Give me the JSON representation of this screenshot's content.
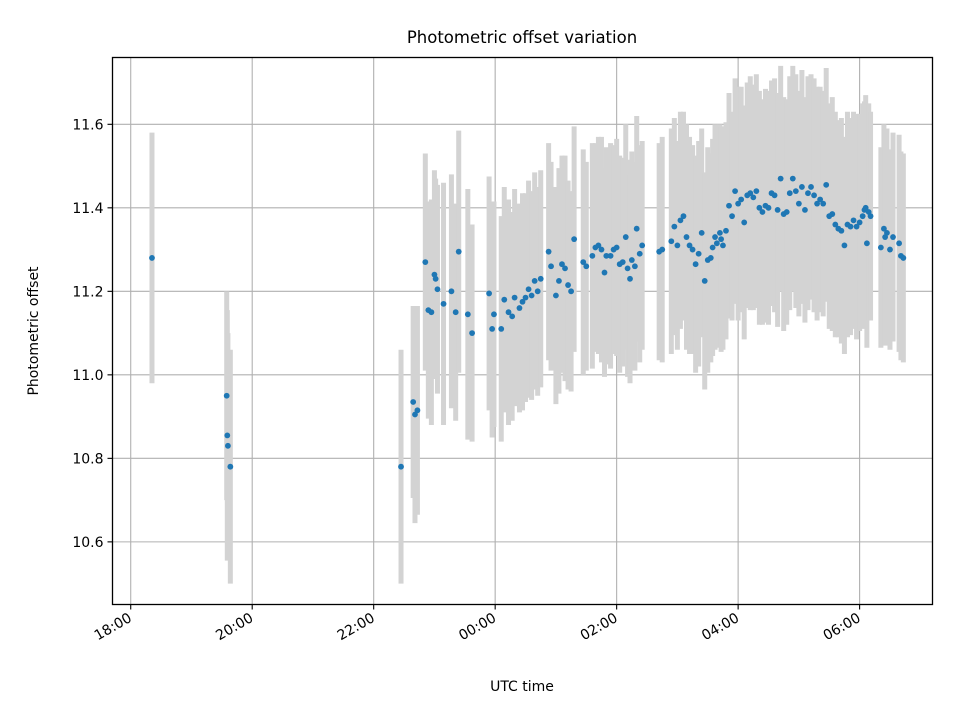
{
  "chart_data": {
    "type": "scatter",
    "title": "Photometric offset variation",
    "xlabel": "UTC time",
    "ylabel": "Photometric offset",
    "x_unit": "hours after 18:00 UTC",
    "xlim": [
      -0.3,
      13.2
    ],
    "ylim": [
      10.45,
      11.76
    ],
    "x_ticks": [
      0,
      2,
      4,
      6,
      8,
      10,
      12
    ],
    "x_tick_labels": [
      "18:00",
      "20:00",
      "22:00",
      "00:00",
      "02:00",
      "04:00",
      "06:00"
    ],
    "y_ticks": [
      10.6,
      10.8,
      11.0,
      11.2,
      11.4,
      11.6
    ],
    "y_tick_labels": [
      "10.6",
      "10.8",
      "11.0",
      "11.2",
      "11.4",
      "11.6"
    ],
    "grid": true,
    "marker_color": "#1f77b4",
    "errorbar_color": "#d3d3d3",
    "points": [
      [
        0.35,
        11.28,
        0.3
      ],
      [
        1.58,
        10.95,
        0.25
      ],
      [
        1.59,
        10.855,
        0.3
      ],
      [
        1.6,
        10.83,
        0.27
      ],
      [
        1.64,
        10.78,
        0.28
      ],
      [
        4.45,
        10.78,
        0.28
      ],
      [
        4.65,
        10.935,
        0.23
      ],
      [
        4.68,
        10.905,
        0.26
      ],
      [
        4.72,
        10.915,
        0.25
      ],
      [
        4.85,
        11.27,
        0.26
      ],
      [
        4.9,
        11.155,
        0.26
      ],
      [
        4.95,
        11.15,
        0.27
      ],
      [
        5.0,
        11.24,
        0.25
      ],
      [
        5.02,
        11.23,
        0.24
      ],
      [
        5.05,
        11.205,
        0.25
      ],
      [
        5.15,
        11.17,
        0.29
      ],
      [
        5.28,
        11.2,
        0.28
      ],
      [
        5.35,
        11.15,
        0.26
      ],
      [
        5.4,
        11.295,
        0.29
      ],
      [
        5.55,
        11.145,
        0.3
      ],
      [
        5.62,
        11.1,
        0.26
      ],
      [
        5.9,
        11.195,
        0.28
      ],
      [
        5.95,
        11.11,
        0.26
      ],
      [
        5.98,
        11.145,
        0.27
      ],
      [
        6.1,
        11.11,
        0.27
      ],
      [
        6.15,
        11.18,
        0.27
      ],
      [
        6.22,
        11.15,
        0.27
      ],
      [
        6.28,
        11.14,
        0.25
      ],
      [
        6.32,
        11.185,
        0.26
      ],
      [
        6.4,
        11.16,
        0.25
      ],
      [
        6.45,
        11.175,
        0.26
      ],
      [
        6.5,
        11.185,
        0.25
      ],
      [
        6.55,
        11.205,
        0.26
      ],
      [
        6.6,
        11.19,
        0.25
      ],
      [
        6.65,
        11.225,
        0.26
      ],
      [
        6.7,
        11.2,
        0.25
      ],
      [
        6.75,
        11.23,
        0.26
      ],
      [
        6.88,
        11.295,
        0.26
      ],
      [
        6.92,
        11.26,
        0.25
      ],
      [
        7.0,
        11.19,
        0.26
      ],
      [
        7.05,
        11.225,
        0.27
      ],
      [
        7.1,
        11.265,
        0.26
      ],
      [
        7.15,
        11.255,
        0.27
      ],
      [
        7.2,
        11.215,
        0.25
      ],
      [
        7.25,
        11.2,
        0.24
      ],
      [
        7.3,
        11.325,
        0.27
      ],
      [
        7.45,
        11.27,
        0.27
      ],
      [
        7.5,
        11.26,
        0.25
      ],
      [
        7.6,
        11.285,
        0.27
      ],
      [
        7.65,
        11.305,
        0.25
      ],
      [
        7.7,
        11.31,
        0.26
      ],
      [
        7.75,
        11.3,
        0.27
      ],
      [
        7.8,
        11.245,
        0.25
      ],
      [
        7.83,
        11.285,
        0.26
      ],
      [
        7.9,
        11.285,
        0.27
      ],
      [
        7.95,
        11.3,
        0.25
      ],
      [
        8.0,
        11.305,
        0.26
      ],
      [
        8.05,
        11.265,
        0.26
      ],
      [
        8.1,
        11.27,
        0.25
      ],
      [
        8.15,
        11.33,
        0.27
      ],
      [
        8.18,
        11.255,
        0.26
      ],
      [
        8.22,
        11.23,
        0.25
      ],
      [
        8.25,
        11.275,
        0.26
      ],
      [
        8.3,
        11.26,
        0.25
      ],
      [
        8.33,
        11.35,
        0.27
      ],
      [
        8.38,
        11.29,
        0.26
      ],
      [
        8.42,
        11.31,
        0.25
      ],
      [
        8.7,
        11.295,
        0.26
      ],
      [
        8.75,
        11.3,
        0.27
      ],
      [
        8.9,
        11.32,
        0.27
      ],
      [
        8.95,
        11.355,
        0.26
      ],
      [
        9.0,
        11.31,
        0.25
      ],
      [
        9.05,
        11.37,
        0.26
      ],
      [
        9.1,
        11.38,
        0.25
      ],
      [
        9.15,
        11.33,
        0.27
      ],
      [
        9.2,
        11.31,
        0.26
      ],
      [
        9.25,
        11.3,
        0.25
      ],
      [
        9.3,
        11.265,
        0.26
      ],
      [
        9.35,
        11.29,
        0.27
      ],
      [
        9.4,
        11.34,
        0.25
      ],
      [
        9.45,
        11.225,
        0.26
      ],
      [
        9.5,
        11.275,
        0.27
      ],
      [
        9.55,
        11.28,
        0.25
      ],
      [
        9.58,
        11.305,
        0.26
      ],
      [
        9.62,
        11.33,
        0.27
      ],
      [
        9.65,
        11.315,
        0.25
      ],
      [
        9.7,
        11.34,
        0.26
      ],
      [
        9.72,
        11.325,
        0.27
      ],
      [
        9.75,
        11.31,
        0.25
      ],
      [
        9.8,
        11.345,
        0.26
      ],
      [
        9.85,
        11.405,
        0.27
      ],
      [
        9.9,
        11.38,
        0.25
      ],
      [
        9.95,
        11.44,
        0.27
      ],
      [
        10.0,
        11.41,
        0.28
      ],
      [
        10.05,
        11.42,
        0.27
      ],
      [
        10.1,
        11.365,
        0.28
      ],
      [
        10.15,
        11.43,
        0.27
      ],
      [
        10.2,
        11.435,
        0.28
      ],
      [
        10.25,
        11.425,
        0.27
      ],
      [
        10.3,
        11.44,
        0.28
      ],
      [
        10.35,
        11.4,
        0.28
      ],
      [
        10.4,
        11.39,
        0.27
      ],
      [
        10.45,
        11.405,
        0.28
      ],
      [
        10.5,
        11.4,
        0.28
      ],
      [
        10.55,
        11.435,
        0.27
      ],
      [
        10.6,
        11.43,
        0.28
      ],
      [
        10.65,
        11.395,
        0.28
      ],
      [
        10.7,
        11.47,
        0.27
      ],
      [
        10.75,
        11.385,
        0.28
      ],
      [
        10.8,
        11.39,
        0.27
      ],
      [
        10.85,
        11.435,
        0.28
      ],
      [
        10.9,
        11.47,
        0.27
      ],
      [
        10.95,
        11.44,
        0.28
      ],
      [
        11.0,
        11.41,
        0.27
      ],
      [
        11.05,
        11.45,
        0.28
      ],
      [
        11.1,
        11.395,
        0.27
      ],
      [
        11.15,
        11.435,
        0.28
      ],
      [
        11.2,
        11.45,
        0.27
      ],
      [
        11.25,
        11.43,
        0.28
      ],
      [
        11.3,
        11.41,
        0.28
      ],
      [
        11.35,
        11.42,
        0.27
      ],
      [
        11.4,
        11.41,
        0.27
      ],
      [
        11.45,
        11.455,
        0.28
      ],
      [
        11.5,
        11.38,
        0.27
      ],
      [
        11.55,
        11.385,
        0.28
      ],
      [
        11.6,
        11.36,
        0.27
      ],
      [
        11.65,
        11.35,
        0.26
      ],
      [
        11.7,
        11.345,
        0.27
      ],
      [
        11.75,
        11.31,
        0.26
      ],
      [
        11.8,
        11.36,
        0.27
      ],
      [
        11.85,
        11.355,
        0.26
      ],
      [
        11.9,
        11.37,
        0.26
      ],
      [
        11.95,
        11.355,
        0.27
      ],
      [
        12.0,
        11.365,
        0.26
      ],
      [
        12.05,
        11.38,
        0.27
      ],
      [
        12.08,
        11.395,
        0.26
      ],
      [
        12.1,
        11.4,
        0.27
      ],
      [
        12.12,
        11.315,
        0.25
      ],
      [
        12.15,
        11.39,
        0.26
      ],
      [
        12.18,
        11.38,
        0.25
      ],
      [
        12.35,
        11.305,
        0.24
      ],
      [
        12.4,
        11.35,
        0.25
      ],
      [
        12.42,
        11.33,
        0.26
      ],
      [
        12.45,
        11.34,
        0.25
      ],
      [
        12.5,
        11.3,
        0.24
      ],
      [
        12.55,
        11.33,
        0.25
      ],
      [
        12.65,
        11.315,
        0.26
      ],
      [
        12.68,
        11.285,
        0.25
      ],
      [
        12.72,
        11.28,
        0.25
      ]
    ]
  }
}
